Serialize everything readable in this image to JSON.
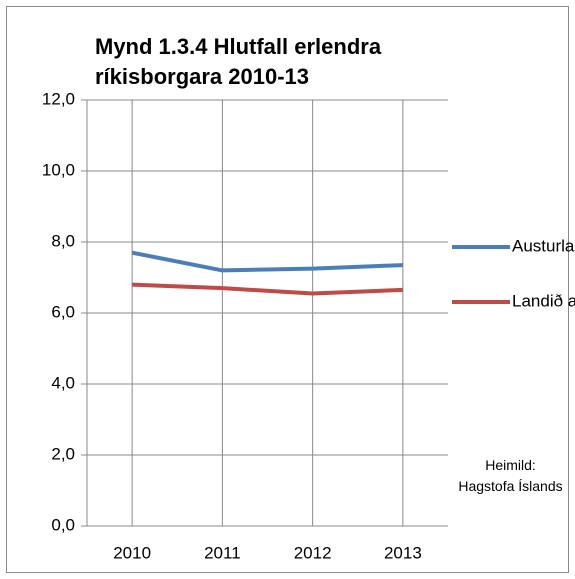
{
  "chart_data": {
    "type": "line",
    "title": "Mynd 1.3.4 Hlutfall erlendra ríkisborgara 2010-13",
    "categories": [
      "2010",
      "2011",
      "2012",
      "2013"
    ],
    "series": [
      {
        "name": "Austurland %",
        "color": "#4a7ebb",
        "values": [
          7.7,
          7.2,
          7.25,
          7.35
        ]
      },
      {
        "name": "Landið allt %",
        "color": "#be4b48",
        "values": [
          6.8,
          6.7,
          6.55,
          6.65
        ]
      }
    ],
    "ylim": [
      0,
      12
    ],
    "yticks": [
      {
        "value": 0,
        "label": "0,0"
      },
      {
        "value": 2,
        "label": "2,0"
      },
      {
        "value": 4,
        "label": "4,0"
      },
      {
        "value": 6,
        "label": "6,0"
      },
      {
        "value": 8,
        "label": "8,0"
      },
      {
        "value": 10,
        "label": "10,0"
      },
      {
        "value": 12,
        "label": "12,0"
      }
    ],
    "grid": true,
    "legend": "right",
    "annotation": "Heimild: Hagstofa Íslands"
  }
}
